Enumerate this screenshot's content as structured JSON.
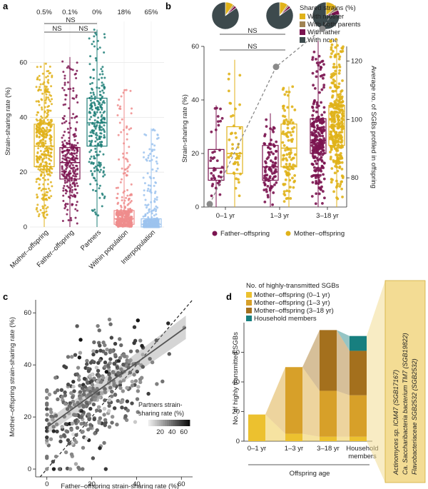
{
  "panel_labels": {
    "a": "a",
    "b": "b",
    "c": "c",
    "d": "d"
  },
  "chart_data": [
    {
      "panel": "a",
      "type": "box-strip",
      "ylabel": "Strain-sharing rate (%)",
      "ylim": [
        0,
        75
      ],
      "yticks": [
        "0",
        "20",
        "40",
        "60"
      ],
      "categories": [
        "Mother–offspring",
        "Father–offspring",
        "Partners",
        "Within population",
        "Interpopulation"
      ],
      "top_labels": [
        "0.5%",
        "0.1%",
        "0%",
        "18%",
        "65%"
      ],
      "colors": [
        "#e0b21a",
        "#7b1450",
        "#1f7f78",
        "#ef8c8c",
        "#9cc3ee"
      ],
      "boxes": [
        {
          "q1": 22,
          "median": 29.5,
          "q3": 37.5,
          "whislo": 0,
          "whishi": 60,
          "n": 420
        },
        {
          "q1": 17.5,
          "median": 23.5,
          "q3": 29,
          "whislo": 0,
          "whishi": 62,
          "n": 280
        },
        {
          "q1": 29.5,
          "median": 38,
          "q3": 47,
          "whislo": 0,
          "whishi": 72,
          "n": 260
        },
        {
          "q1": 1,
          "median": 3,
          "q3": 6,
          "whislo": 0,
          "whishi": 50,
          "n": 400
        },
        {
          "q1": 0,
          "median": 1,
          "q3": 3,
          "whislo": 0,
          "whishi": 36,
          "n": 400
        }
      ],
      "significance": [
        {
          "label": "NS",
          "from": 0,
          "to": 2
        },
        {
          "label": "NS",
          "from": 0,
          "to": 1
        },
        {
          "label": "NS",
          "from": 1,
          "to": 2
        }
      ]
    },
    {
      "panel": "b",
      "type": "box-strip-with-line",
      "ylabel": "Strain-sharing rate (%)",
      "y2label": "Average no. of SGBs profiled in offspring",
      "ylim": [
        0,
        60
      ],
      "yticks": [
        "0",
        "20",
        "40",
        "60"
      ],
      "y2lim": [
        70,
        125
      ],
      "y2ticks": [
        "80",
        "100",
        "120"
      ],
      "categories": [
        "0–1 yr",
        "1–3 yr",
        "3–18 yr"
      ],
      "series": [
        {
          "name": "Father–offspring",
          "color": "#7b1450",
          "boxes": [
            {
              "q1": 10,
              "median": 14.5,
              "q3": 21.5,
              "whislo": 0,
              "whishi": 38,
              "n": 40
            },
            {
              "q1": 10,
              "median": 15,
              "q3": 23,
              "whislo": 0,
              "whishi": 35,
              "n": 90
            },
            {
              "q1": 20,
              "median": 25,
              "q3": 33,
              "whislo": 0,
              "whishi": 62,
              "n": 260
            }
          ]
        },
        {
          "name": "Mother–offspring",
          "color": "#e0b21a",
          "boxes": [
            {
              "q1": 12.5,
              "median": 20,
              "q3": 30,
              "whislo": 0,
              "whishi": 55,
              "n": 45
            },
            {
              "q1": 15,
              "median": 22,
              "q3": 31,
              "whislo": 0,
              "whishi": 45,
              "n": 110
            },
            {
              "q1": 23,
              "median": 30,
              "q3": 38,
              "whislo": 0,
              "whishi": 65,
              "n": 320
            }
          ]
        }
      ],
      "sgb_line": {
        "x": [
          0,
          1,
          2
        ],
        "values": [
          71,
          118,
          131
        ],
        "color": "#8a8a8a"
      },
      "significance": [
        {
          "label": "NS",
          "from": 0,
          "to": 1
        },
        {
          "label": "NS",
          "from": 0,
          "to": 1
        }
      ],
      "pies": [
        {
          "category": "0–1 yr",
          "slices": [
            {
              "name": "With mother",
              "value": 10
            },
            {
              "name": "With both parents",
              "value": 2
            },
            {
              "name": "With father",
              "value": 3
            },
            {
              "name": "With none",
              "value": 85
            }
          ]
        },
        {
          "category": "1–3 yr",
          "slices": [
            {
              "name": "With mother",
              "value": 10
            },
            {
              "name": "With both parents",
              "value": 2
            },
            {
              "name": "With father",
              "value": 3
            },
            {
              "name": "With none",
              "value": 85
            }
          ]
        },
        {
          "category": "3–18 yr",
          "slices": [
            {
              "name": "With mother",
              "value": 14
            },
            {
              "name": "With both parents",
              "value": 4
            },
            {
              "name": "With father",
              "value": 6
            },
            {
              "name": "With none",
              "value": 76
            }
          ]
        }
      ],
      "pie_legend": {
        "title": "Shared strains (%)",
        "items": [
          {
            "name": "With mother",
            "color": "#e0b21a"
          },
          {
            "name": "With both parents",
            "color": "#a08353"
          },
          {
            "name": "With father",
            "color": "#7b1450"
          },
          {
            "name": "With none",
            "color": "#3d4a4d"
          }
        ]
      },
      "legend": [
        {
          "name": "Father–offspring",
          "color": "#7b1450"
        },
        {
          "name": "Mother–offspring",
          "color": "#e0b21a"
        }
      ]
    },
    {
      "panel": "c",
      "type": "scatter",
      "xlabel": "Father–offspring strain-sharing rate (%)",
      "ylabel": "Mother–offspring strain-sharing rate (%)",
      "xlim": [
        -5,
        65
      ],
      "ylim": [
        -3,
        65
      ],
      "xticks": [
        "0",
        "20",
        "40",
        "60"
      ],
      "yticks": [
        "0",
        "20",
        "40",
        "60"
      ],
      "regression": {
        "intercept": 16,
        "slope": 0.62,
        "ci": 2.5
      },
      "identity_line": true,
      "n_points": 420,
      "color_legend": {
        "title_line1": "Partners strain-",
        "title_line2": "sharing rate (%)",
        "ticks": [
          "20",
          "40",
          "60"
        ],
        "range": [
          0,
          70
        ]
      }
    },
    {
      "panel": "d",
      "type": "stacked-bar",
      "ylabel": "No. of highly transmitted SGBs",
      "ylim": [
        0,
        80
      ],
      "yticks": [
        "0",
        "20",
        "40",
        "60"
      ],
      "categories": [
        "0–1 yr",
        "1–3 yr",
        "3–18 yr",
        "Household members"
      ],
      "xlabel_group": "Offspring age",
      "legend_title": "No. of highly-transmitted SGBs",
      "series": [
        {
          "name": "Mother–offspring (0–1 yr)",
          "color": "#ecc12f",
          "values": [
            18,
            5,
            3,
            3
          ]
        },
        {
          "name": "Mother–offspring (1–3 yr)",
          "color": "#d7a029",
          "values": [
            0,
            45,
            31,
            28
          ]
        },
        {
          "name": "Mother–offspring (3–18 yr)",
          "color": "#a4701d",
          "values": [
            0,
            0,
            41,
            30
          ]
        },
        {
          "name": "Household members",
          "color": "#177f7f",
          "values": [
            0,
            0,
            0,
            10
          ]
        }
      ],
      "callout_title": "",
      "callout": [
        "Actinomyces sp. ICM47 (SGB17167)",
        "Ca. Saccharibacteria bacterium TM7 (SGB19822)",
        "Flavobacteriaceae SGB2532 (SGB2532)"
      ]
    }
  ]
}
